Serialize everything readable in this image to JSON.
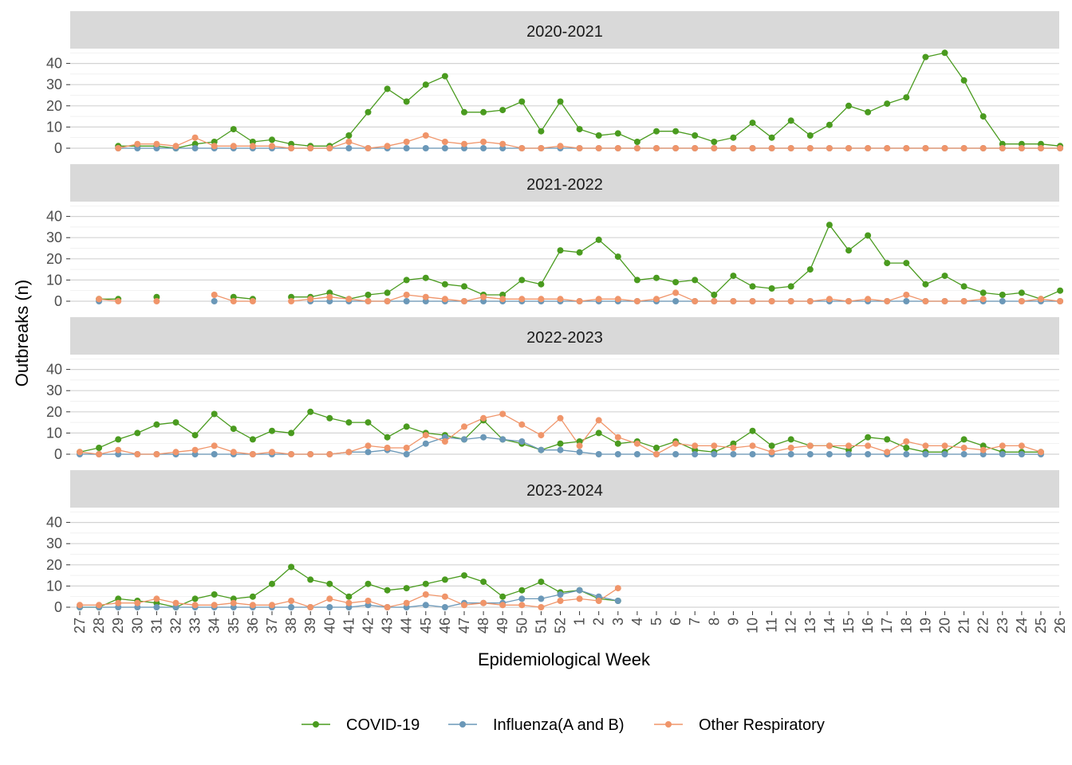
{
  "chart_data": {
    "type": "line",
    "xlabel": "Epidemiological Week",
    "ylabel": "Outbreaks (n)",
    "ylim": [
      0,
      45
    ],
    "yticks": [
      0,
      10,
      20,
      30,
      40
    ],
    "grid": true,
    "legend_position": "bottom",
    "categories": [
      "27",
      "28",
      "29",
      "30",
      "31",
      "32",
      "33",
      "34",
      "35",
      "36",
      "37",
      "38",
      "39",
      "40",
      "41",
      "42",
      "43",
      "44",
      "45",
      "46",
      "47",
      "48",
      "49",
      "50",
      "51",
      "52",
      "1",
      "2",
      "3",
      "4",
      "5",
      "6",
      "7",
      "8",
      "9",
      "10",
      "11",
      "12",
      "13",
      "14",
      "15",
      "16",
      "17",
      "18",
      "19",
      "20",
      "21",
      "22",
      "23",
      "24",
      "25",
      "26"
    ],
    "legend": [
      {
        "name": "COVID-19",
        "color": "#4a9b1f"
      },
      {
        "name": "Influenza(A and B)",
        "color": "#6b98b8"
      },
      {
        "name": "Other Respiratory",
        "color": "#f0956a"
      }
    ],
    "panels": [
      {
        "title": "2020-2021",
        "series": [
          {
            "name": "COVID-19",
            "values": [
              null,
              null,
              1,
              1,
              1,
              0,
              2,
              3,
              9,
              3,
              4,
              2,
              1,
              1,
              6,
              17,
              28,
              22,
              30,
              34,
              17,
              17,
              18,
              22,
              8,
              22,
              9,
              6,
              7,
              3,
              8,
              8,
              6,
              3,
              5,
              12,
              5,
              13,
              6,
              11,
              20,
              17,
              21,
              24,
              43,
              45,
              32,
              15,
              2,
              2,
              2,
              1
            ]
          },
          {
            "name": "Influenza(A and B)",
            "values": [
              null,
              null,
              0,
              0,
              0,
              0,
              0,
              0,
              0,
              0,
              0,
              0,
              0,
              0,
              0,
              0,
              0,
              0,
              0,
              0,
              0,
              0,
              0,
              0,
              0,
              0,
              0,
              0,
              0,
              0,
              0,
              0,
              0,
              0,
              0,
              0,
              0,
              0,
              0,
              0,
              0,
              0,
              0,
              0,
              0,
              0,
              0,
              0,
              0,
              0,
              0,
              0
            ]
          },
          {
            "name": "Other Respiratory",
            "values": [
              null,
              null,
              0,
              2,
              2,
              1,
              5,
              1,
              1,
              1,
              1,
              0,
              0,
              0,
              3,
              0,
              1,
              3,
              6,
              3,
              2,
              3,
              2,
              0,
              0,
              1,
              0,
              0,
              0,
              0,
              0,
              0,
              0,
              0,
              0,
              0,
              0,
              0,
              0,
              0,
              0,
              0,
              0,
              0,
              0,
              0,
              0,
              0,
              0,
              0,
              0,
              0
            ]
          }
        ]
      },
      {
        "title": "2021-2022",
        "series": [
          {
            "name": "COVID-19",
            "values": [
              null,
              1,
              1,
              null,
              2,
              null,
              null,
              null,
              2,
              1,
              null,
              2,
              2,
              4,
              1,
              3,
              4,
              10,
              11,
              8,
              7,
              3,
              3,
              10,
              8,
              24,
              23,
              29,
              21,
              10,
              11,
              9,
              10,
              3,
              12,
              7,
              6,
              7,
              15,
              36,
              24,
              31,
              18,
              18,
              8,
              12,
              7,
              4,
              3,
              4,
              1,
              5
            ]
          },
          {
            "name": "Influenza(A and B)",
            "values": [
              null,
              0,
              null,
              null,
              null,
              null,
              null,
              0,
              null,
              null,
              null,
              null,
              0,
              0,
              0,
              0,
              0,
              0,
              0,
              0,
              0,
              0,
              0,
              0,
              0,
              0,
              0,
              0,
              0,
              0,
              0,
              0,
              0,
              0,
              0,
              0,
              0,
              0,
              0,
              0,
              0,
              0,
              0,
              0,
              0,
              0,
              0,
              0,
              0,
              0,
              0,
              0
            ]
          },
          {
            "name": "Other Respiratory",
            "values": [
              null,
              1,
              0,
              null,
              0,
              null,
              null,
              3,
              0,
              0,
              null,
              0,
              1,
              2,
              1,
              0,
              0,
              3,
              2,
              1,
              0,
              2,
              1,
              1,
              1,
              1,
              0,
              1,
              1,
              0,
              1,
              4,
              0,
              0,
              0,
              0,
              0,
              0,
              0,
              1,
              0,
              1,
              0,
              3,
              0,
              0,
              0,
              1,
              null,
              0,
              1,
              0
            ]
          }
        ]
      },
      {
        "title": "2022-2023",
        "series": [
          {
            "name": "COVID-19",
            "values": [
              1,
              3,
              7,
              10,
              14,
              15,
              9,
              19,
              12,
              7,
              11,
              10,
              20,
              17,
              15,
              15,
              8,
              13,
              10,
              9,
              7,
              16,
              7,
              5,
              2,
              5,
              6,
              10,
              5,
              6,
              3,
              6,
              2,
              1,
              5,
              11,
              4,
              7,
              4,
              4,
              2,
              8,
              7,
              3,
              1,
              1,
              7,
              4,
              1,
              1,
              1,
              null
            ]
          },
          {
            "name": "Influenza(A and B)",
            "values": [
              0,
              0,
              0,
              0,
              0,
              0,
              0,
              0,
              0,
              0,
              0,
              0,
              0,
              0,
              1,
              1,
              2,
              0,
              5,
              8,
              7,
              8,
              7,
              6,
              2,
              2,
              1,
              0,
              0,
              0,
              0,
              0,
              0,
              0,
              0,
              0,
              0,
              0,
              0,
              0,
              0,
              0,
              0,
              0,
              0,
              0,
              0,
              0,
              0,
              0,
              0,
              null
            ]
          },
          {
            "name": "Other Respiratory",
            "values": [
              1,
              0,
              2,
              0,
              0,
              1,
              2,
              4,
              1,
              0,
              1,
              0,
              0,
              0,
              1,
              4,
              3,
              3,
              9,
              6,
              13,
              17,
              19,
              14,
              9,
              17,
              4,
              16,
              8,
              5,
              0,
              5,
              4,
              4,
              3,
              4,
              1,
              3,
              4,
              4,
              4,
              4,
              1,
              6,
              4,
              4,
              3,
              2,
              4,
              4,
              1,
              null
            ]
          }
        ]
      },
      {
        "title": "2023-2024",
        "series": [
          {
            "name": "COVID-19",
            "values": [
              0,
              0,
              4,
              3,
              2,
              0,
              4,
              6,
              4,
              5,
              11,
              19,
              13,
              11,
              5,
              11,
              8,
              9,
              11,
              13,
              15,
              12,
              5,
              8,
              12,
              7,
              8,
              4,
              3,
              null,
              null,
              null,
              null,
              null,
              null,
              null,
              null,
              null,
              null,
              null,
              null,
              null,
              null,
              null,
              null,
              null,
              null,
              null,
              null,
              null,
              null,
              null
            ]
          },
          {
            "name": "Influenza(A and B)",
            "values": [
              0,
              0,
              0,
              0,
              0,
              0,
              0,
              0,
              0,
              0,
              0,
              0,
              0,
              0,
              0,
              1,
              0,
              0,
              1,
              0,
              2,
              2,
              2,
              4,
              4,
              6,
              8,
              5,
              3,
              null,
              null,
              null,
              null,
              null,
              null,
              null,
              null,
              null,
              null,
              null,
              null,
              null,
              null,
              null,
              null,
              null,
              null,
              null,
              null,
              null,
              null,
              null
            ]
          },
          {
            "name": "Other Respiratory",
            "values": [
              1,
              1,
              2,
              2,
              4,
              2,
              1,
              1,
              2,
              1,
              1,
              3,
              0,
              4,
              2,
              3,
              0,
              2,
              6,
              5,
              1,
              2,
              1,
              1,
              0,
              3,
              4,
              3,
              9,
              null,
              null,
              null,
              null,
              null,
              null,
              null,
              null,
              null,
              null,
              null,
              null,
              null,
              null,
              null,
              null,
              null,
              null,
              null,
              null,
              null,
              null,
              null
            ]
          }
        ]
      }
    ]
  }
}
